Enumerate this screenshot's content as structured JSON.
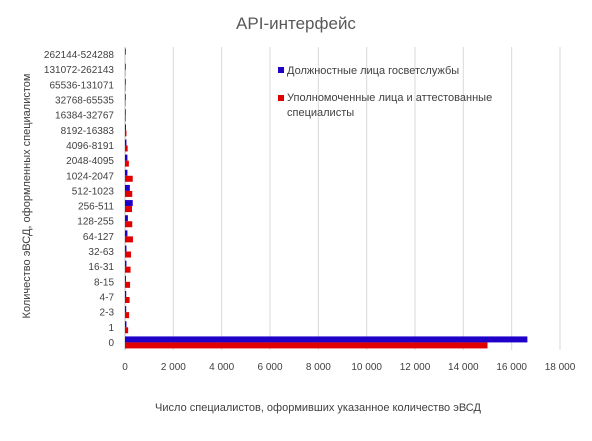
{
  "chart_data": {
    "type": "bar",
    "orientation": "horizontal",
    "title": "API-интерфейс",
    "xlabel": "Число специалистов, оформивших указанное количество эВСД",
    "ylabel": "Количество эВСД, оформленных специалистом",
    "xlim": [
      0,
      18000
    ],
    "xticks": [
      0,
      2000,
      4000,
      6000,
      8000,
      10000,
      12000,
      14000,
      16000,
      18000
    ],
    "xtick_labels": [
      "0",
      "2 000",
      "4 000",
      "6 000",
      "8 000",
      "10 000",
      "12 000",
      "14 000",
      "16 000",
      "18 000"
    ],
    "grid": true,
    "legend_position": "right",
    "categories": [
      "0",
      "1",
      "2-3",
      "4-7",
      "8-15",
      "16-31",
      "32-63",
      "64-127",
      "128-255",
      "256-511",
      "512-1023",
      "1024-2047",
      "2048-4095",
      "4096-8191",
      "8192-16383",
      "16384-32767",
      "32768-65535",
      "65536-131071",
      "131072-262143",
      "262144-524288"
    ],
    "series": [
      {
        "name": "Должностные лица госветслужбы",
        "color": "#1f00c8",
        "values": [
          16650,
          60,
          50,
          50,
          40,
          60,
          60,
          100,
          120,
          320,
          200,
          100,
          100,
          60,
          40,
          30,
          30,
          30,
          30,
          30
        ]
      },
      {
        "name": "Уполномоченные лица и аттестованные специалисты",
        "color": "#e00000",
        "values": [
          15000,
          130,
          170,
          190,
          210,
          230,
          250,
          330,
          300,
          290,
          300,
          320,
          160,
          110,
          60,
          30,
          20,
          20,
          10,
          0
        ]
      }
    ]
  }
}
